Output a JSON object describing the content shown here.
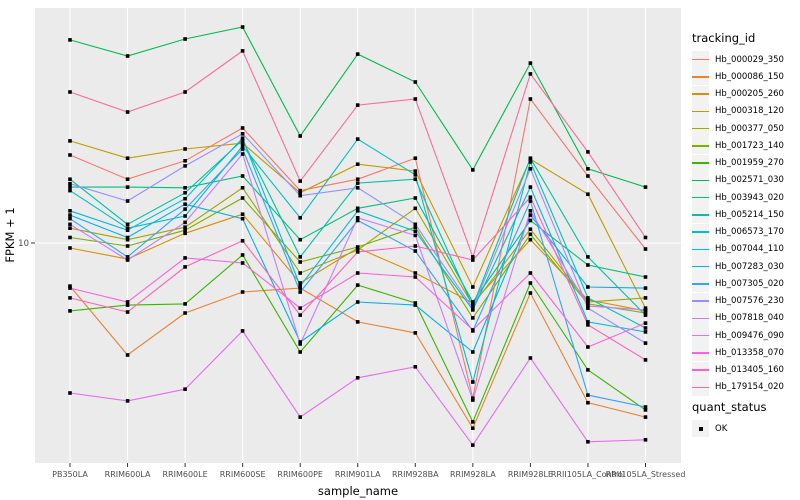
{
  "axes": {
    "x_title": "sample_name",
    "y_title": "FPKM + 1",
    "y_tick_label": "10"
  },
  "legend": {
    "title": "tracking_id"
  },
  "legend2": {
    "title": "quant_status",
    "items": [
      {
        "label": "OK",
        "marker": "black-square"
      }
    ]
  },
  "colors": {
    "panel_bg": "#EBEBEB",
    "grid": "#FFFFFF",
    "marker": "#000000",
    "axis_text": "#4D4D4D",
    "legend_key_bg": "#F2F2F2"
  },
  "chart_data": {
    "type": "line",
    "title": "",
    "xlabel": "sample_name",
    "ylabel": "FPKM + 1",
    "y_scale": "log10",
    "y_ticks": [
      10
    ],
    "grid": true,
    "legend_position": "right",
    "point_shape": "filled-square",
    "quant_status": "OK",
    "categories": [
      "PB350LA",
      "RRIM600LA",
      "RRIM600LE",
      "RRIM600SE",
      "RRIM600PE",
      "RRIM901LA",
      "RRIM928BA",
      "RRIM928LA",
      "RRIM928LE",
      "RRII105LA_Control",
      "RRII105LA_Stressed"
    ],
    "series": [
      {
        "name": "Hb_000029_350",
        "color": "#F8766D",
        "values": [
          21.8,
          17.6,
          20.7,
          27.7,
          15.9,
          17.6,
          21.2,
          2.53,
          35.8,
          18.1,
          9.48
        ]
      },
      {
        "name": "Hb_000086_150",
        "color": "#EA8331",
        "values": [
          6.83,
          3.71,
          5.38,
          6.48,
          6.71,
          4.97,
          4.51,
          1.94,
          6.42,
          2.43,
          2.14
        ]
      },
      {
        "name": "Hb_000205_260",
        "color": "#D89000",
        "values": [
          9.57,
          8.68,
          10.9,
          12.9,
          7.02,
          9.57,
          7.67,
          5.88,
          10.3,
          6.04,
          5.48
        ]
      },
      {
        "name": "Hb_000318_120",
        "color": "#C09B00",
        "values": [
          24.7,
          21.2,
          23.0,
          24.2,
          15.6,
          20.1,
          18.9,
          6.77,
          21.0,
          15.4,
          5.62
        ]
      },
      {
        "name": "Hb_000377_050",
        "color": "#A3A500",
        "values": [
          11.4,
          10.3,
          11.5,
          16.3,
          7.67,
          9.4,
          13.6,
          5.77,
          11.3,
          5.93,
          6.15
        ]
      },
      {
        "name": "Hb_001723_140",
        "color": "#7CAE00",
        "values": [
          10.5,
          9.74,
          11.2,
          14.9,
          8.45,
          9.65,
          11.5,
          5.15,
          10.8,
          5.83,
          5.38
        ]
      },
      {
        "name": "Hb_001959_270",
        "color": "#39B600",
        "values": [
          5.48,
          5.77,
          5.83,
          8.99,
          3.81,
          6.89,
          5.88,
          2.05,
          7.02,
          3.25,
          2.28
        ]
      },
      {
        "name": "Hb_002571_030",
        "color": "#00BB4E",
        "values": [
          60.4,
          52.4,
          60.9,
          67.7,
          25.8,
          53.3,
          41.6,
          19.1,
          49.2,
          19.3,
          16.4
        ]
      },
      {
        "name": "Hb_003943_020",
        "color": "#00BF7D",
        "values": [
          16.4,
          16.4,
          16.3,
          18.1,
          10.3,
          13.6,
          14.9,
          5.93,
          12.2,
          8.23,
          7.4
        ]
      },
      {
        "name": "Hb_005214_150",
        "color": "#00C1A3",
        "values": [
          17.6,
          11.8,
          15.6,
          24.9,
          8.84,
          17.0,
          17.6,
          5.72,
          21.2,
          8.84,
          5.28
        ]
      },
      {
        "name": "Hb_006573_170",
        "color": "#00BFC4",
        "values": [
          15.9,
          11.4,
          12.7,
          23.6,
          12.5,
          25.1,
          18.3,
          2.92,
          20.5,
          6.15,
          4.71
        ]
      },
      {
        "name": "Hb_007044_110",
        "color": "#00BAE0",
        "values": [
          13.3,
          11.2,
          14.8,
          25.3,
          6.83,
          13.3,
          11.1,
          5.53,
          16.4,
          4.97,
          4.55
        ]
      },
      {
        "name": "Hb_007283_030",
        "color": "#00B0F6",
        "values": [
          12.8,
          10.5,
          14.1,
          12.4,
          4.16,
          5.93,
          5.77,
          3.81,
          12.8,
          6.77,
          6.71
        ]
      },
      {
        "name": "Hb_007305_020",
        "color": "#35A2FF",
        "values": [
          12.4,
          8.84,
          13.5,
          23.0,
          6.48,
          12.2,
          9.32,
          4.59,
          14.5,
          2.6,
          2.34
        ]
      },
      {
        "name": "Hb_007576_230",
        "color": "#9590FF",
        "values": [
          16.9,
          14.5,
          19.8,
          26.3,
          15.2,
          16.3,
          11.8,
          5.62,
          19.3,
          5.62,
          4.12
        ]
      },
      {
        "name": "Hb_007818_040",
        "color": "#C77CFF",
        "values": [
          11.8,
          8.6,
          12.0,
          22.0,
          4.09,
          12.5,
          10.7,
          2.49,
          13.3,
          5.72,
          5.53
        ]
      },
      {
        "name": "Hb_009476_090",
        "color": "#E76BF3",
        "values": [
          2.65,
          2.47,
          2.74,
          4.59,
          2.14,
          3.03,
          3.34,
          1.67,
          3.61,
          1.72,
          1.75
        ]
      },
      {
        "name": "Hb_013358_070",
        "color": "#FA62DB",
        "values": [
          6.71,
          5.93,
          8.76,
          8.38,
          5.62,
          7.67,
          7.4,
          4.63,
          7.67,
          3.98,
          4.92
        ]
      },
      {
        "name": "Hb_013405_160",
        "color": "#FF62BC",
        "values": [
          6.15,
          5.43,
          8.09,
          10.2,
          5.28,
          9.24,
          9.74,
          8.6,
          15.0,
          4.84,
          3.55
        ]
      },
      {
        "name": "Hb_179154_020",
        "color": "#FF6A98",
        "values": [
          38.1,
          31.9,
          38.1,
          54.8,
          17.3,
          33.9,
          35.8,
          8.84,
          44.7,
          22.4,
          10.5
        ]
      }
    ]
  }
}
